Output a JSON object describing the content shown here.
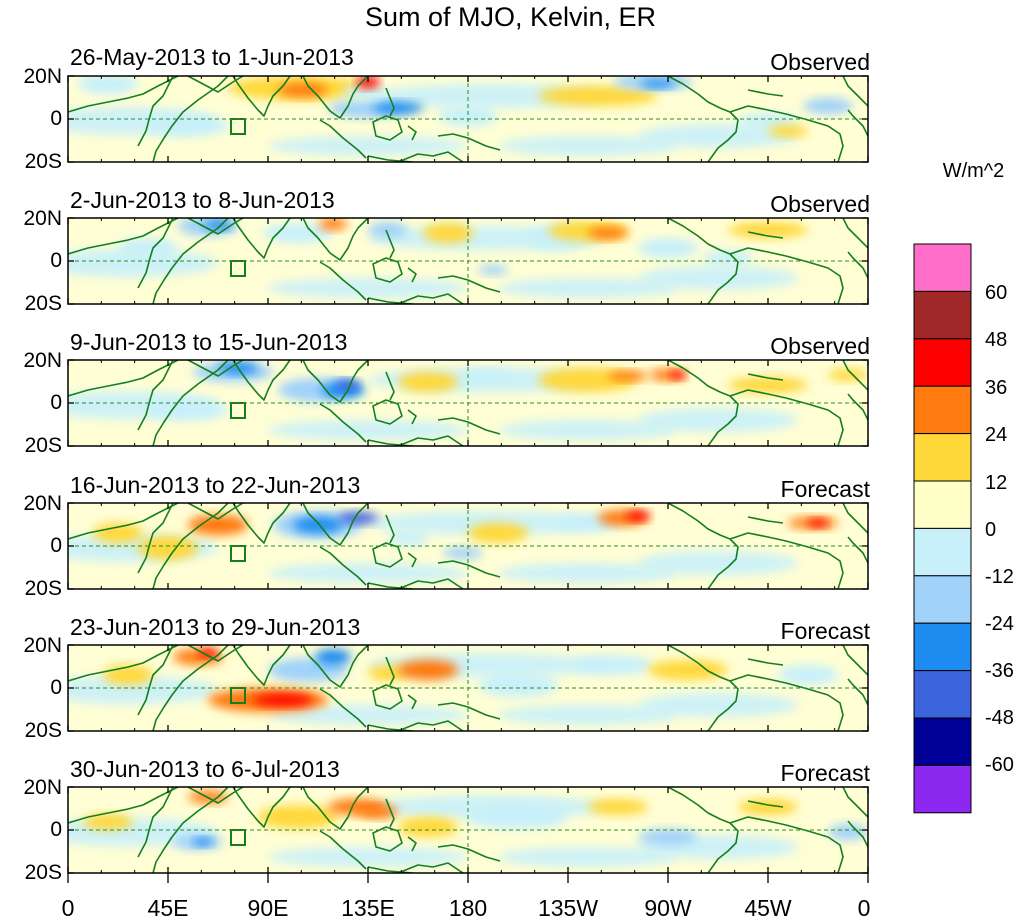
{
  "title": "Sum of MJO, Kelvin, ER",
  "units": "W/m^2",
  "panels": [
    {
      "date_range": "26-May-2013 to 1-Jun-2013",
      "status": "Observed"
    },
    {
      "date_range": "2-Jun-2013 to 8-Jun-2013",
      "status": "Observed"
    },
    {
      "date_range": "9-Jun-2013 to 15-Jun-2013",
      "status": "Observed"
    },
    {
      "date_range": "16-Jun-2013 to 22-Jun-2013",
      "status": "Forecast"
    },
    {
      "date_range": "23-Jun-2013 to 29-Jun-2013",
      "status": "Forecast"
    },
    {
      "date_range": "30-Jun-2013 to 6-Jul-2013",
      "status": "Forecast"
    }
  ],
  "lat_labels": [
    "20N",
    "0",
    "20S"
  ],
  "lon_labels": [
    "0",
    "45E",
    "90E",
    "135E",
    "180",
    "135W",
    "90W",
    "45W",
    "0"
  ],
  "colorbar": {
    "ticks": [
      "60",
      "48",
      "36",
      "24",
      "12",
      "0",
      "-12",
      "-24",
      "-36",
      "-48",
      "-60"
    ],
    "colors": [
      "#ff6ec8",
      "#a02828",
      "#ff0000",
      "#ff7a0f",
      "#ffd83a",
      "#ffffc8",
      "#c8f0fa",
      "#a0d2fa",
      "#1e8cf0",
      "#3c64dc",
      "#000096",
      "#8c28f0"
    ]
  },
  "colors": {
    "coast": "#157f1f",
    "reference_line": "#2a8c2a"
  }
}
